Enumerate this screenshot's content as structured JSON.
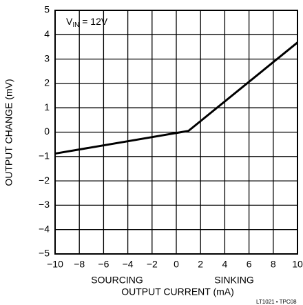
{
  "chart_data": {
    "type": "line",
    "x": [
      -10,
      1,
      10
    ],
    "values": [
      -0.88,
      0.05,
      3.68
    ],
    "color": "#000000",
    "xlim": [
      -10,
      10
    ],
    "xticks": [
      {
        "value": -10,
        "label": "−10"
      },
      {
        "value": -8,
        "label": "−8"
      },
      {
        "value": -6,
        "label": "−6"
      },
      {
        "value": -4,
        "label": "−4"
      },
      {
        "value": -2,
        "label": "−2"
      },
      0,
      2,
      4,
      6,
      8,
      10
    ],
    "ylim": [
      -5,
      5
    ],
    "yticks": [
      {
        "value": -5,
        "label": "−5"
      },
      {
        "value": -4,
        "label": "−4"
      },
      {
        "value": -3,
        "label": "−3"
      },
      {
        "value": -2,
        "label": "−2"
      },
      {
        "value": -1,
        "label": "−1"
      },
      0,
      1,
      2,
      3,
      4,
      5
    ],
    "grid": true,
    "xlabel": "OUTPUT CURRENT (mA)",
    "ylabel": "OUTPUT CHANGE (mV)",
    "annotation": {
      "main": "V",
      "sub": "IN",
      "rest": " = 12V"
    },
    "left_note": "SOURCING",
    "right_note": "SINKING",
    "footnote": "LT1021 • TPC08"
  }
}
